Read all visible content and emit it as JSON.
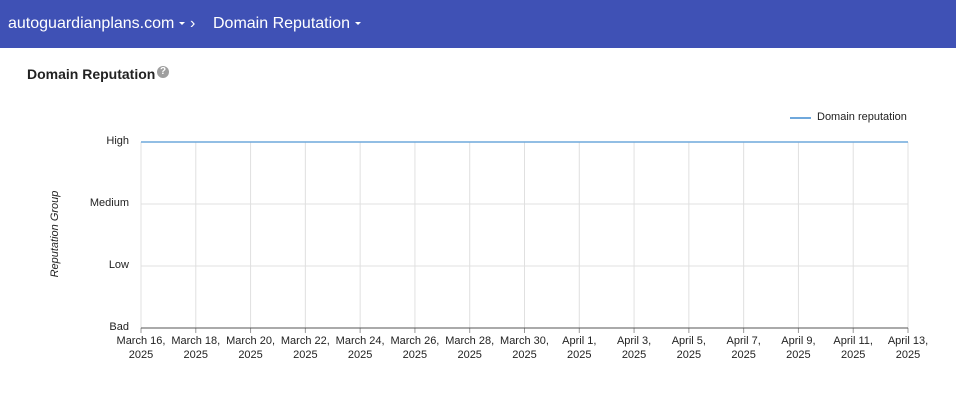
{
  "header": {
    "domain": "autoguardianplans.com",
    "section": "Domain Reputation"
  },
  "page_title": "Domain Reputation",
  "chart_data": {
    "type": "line",
    "y_label": "Reputation Group",
    "x": [
      "March 16, 2025",
      "March 18, 2025",
      "March 20, 2025",
      "March 22, 2025",
      "March 24, 2025",
      "March 26, 2025",
      "March 28, 2025",
      "March 30, 2025",
      "April 1, 2025",
      "April 3, 2025",
      "April 5, 2025",
      "April 7, 2025",
      "April 9, 2025",
      "April 11, 2025",
      "April 13, 2025"
    ],
    "series": [
      {
        "name": "Domain reputation",
        "color": "#6fa8dc",
        "values": [
          3,
          3,
          3,
          3,
          3,
          3,
          3,
          3,
          3,
          3,
          3,
          3,
          3,
          3,
          3
        ]
      }
    ],
    "ylim": [
      0,
      3
    ],
    "yticks": [
      {
        "value": 0,
        "label": "Bad"
      },
      {
        "value": 1,
        "label": "Low"
      },
      {
        "value": 2,
        "label": "Medium"
      },
      {
        "value": 3,
        "label": "High"
      }
    ],
    "grid": true,
    "legend": "top-right"
  }
}
